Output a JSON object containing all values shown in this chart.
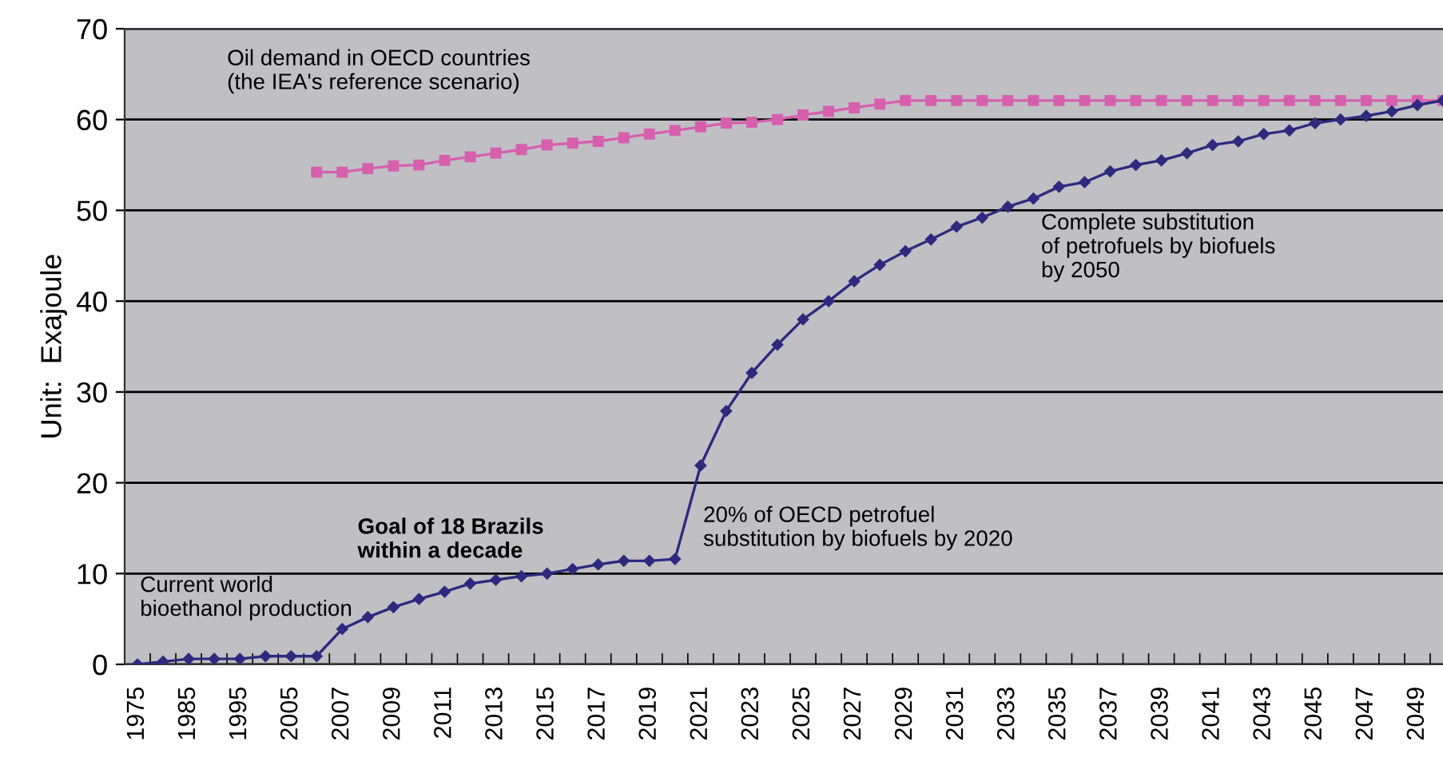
{
  "chart_data": {
    "type": "line",
    "ylabel": "Unit:  Exajoule",
    "categories": [
      "1975",
      null,
      "1985",
      null,
      "1995",
      null,
      "2005",
      null,
      "2007",
      null,
      "2009",
      null,
      "2011",
      null,
      "2013",
      null,
      "2015",
      null,
      "2017",
      null,
      "2019",
      null,
      "2021",
      null,
      "2023",
      null,
      "2025",
      null,
      "2027",
      null,
      "2029",
      null,
      "2031",
      null,
      "2033",
      null,
      "2035",
      null,
      "2037",
      null,
      "2039",
      null,
      "2041",
      null,
      "2043",
      null,
      "2045",
      null,
      "2047",
      null,
      "2049",
      null
    ],
    "series": [
      {
        "color": "#d65fae",
        "marker": "square",
        "values": [
          null,
          null,
          null,
          null,
          null,
          null,
          null,
          54.2,
          54.2,
          54.6,
          54.9,
          55.0,
          55.5,
          55.9,
          56.3,
          56.7,
          57.2,
          57.4,
          57.6,
          58.0,
          58.4,
          58.8,
          59.2,
          59.6,
          59.7,
          60.0,
          60.5,
          60.9,
          61.3,
          61.7,
          62.1,
          62.1,
          62.1,
          62.1,
          62.1,
          62.1,
          62.1,
          62.1,
          62.1,
          62.1,
          62.1,
          62.1,
          62.1,
          62.1,
          62.1,
          62.1,
          62.1,
          62.1,
          62.1,
          62.1,
          62.1,
          62.1
        ]
      },
      {
        "color": "#2e2a7e",
        "marker": "diamond",
        "values": [
          0,
          0.3,
          0.6,
          0.6,
          0.6,
          0.9,
          0.9,
          0.9,
          3.9,
          5.2,
          6.3,
          7.2,
          8.0,
          8.9,
          9.3,
          9.7,
          10.0,
          10.5,
          11.0,
          11.4,
          11.4,
          11.6,
          21.9,
          27.9,
          32.1,
          35.2,
          38.0,
          40.0,
          42.2,
          44.0,
          45.5,
          46.8,
          48.2,
          49.2,
          50.4,
          51.3,
          52.6,
          53.1,
          54.3,
          55.0,
          55.5,
          56.3,
          57.2,
          57.6,
          58.4,
          58.8,
          59.6,
          60.0,
          60.4,
          60.9,
          61.6,
          62.1
        ]
      }
    ],
    "ylim": [
      0,
      70
    ],
    "yticks": [
      0,
      10,
      20,
      30,
      40,
      50,
      60,
      70
    ],
    "grid": "y",
    "line_style": "solid",
    "annotations": [
      "Oil demand in OECD countries\n(the IEA's reference scenario)",
      "Current world\nbioethanol production",
      "Goal of 18 Brazils\nwithin a decade",
      "20% of OECD petrofuel\nsubstitution by biofuels by 2020",
      "Complete substitution\nof petrofuels by biofuels\nby 2050"
    ]
  }
}
